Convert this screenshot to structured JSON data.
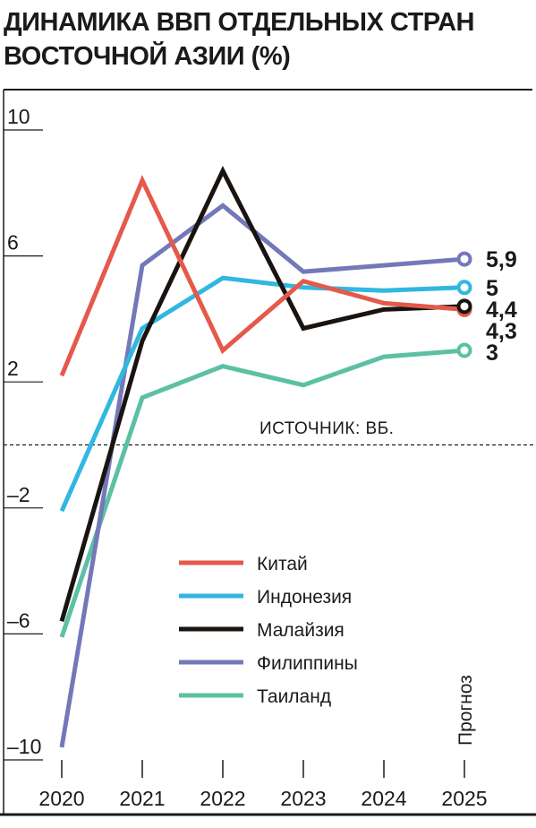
{
  "chart_data": {
    "type": "line",
    "title": "ДИНАМИКА ВВП ОТДЕЛЬНЫХ СТРАН ВОСТОЧНОЙ АЗИИ (%)",
    "x": [
      "2020",
      "2021",
      "2022",
      "2023",
      "2024",
      "2025"
    ],
    "ylim": [
      -10,
      10
    ],
    "yticks": [
      "10",
      "6",
      "2",
      "–2",
      "–6",
      "–10"
    ],
    "grid": false,
    "legend": "bottom-center",
    "source_note": "ИСТОЧНИК: ВБ.",
    "forecast_label": "Прогноз",
    "series": [
      {
        "name": "Китай",
        "color": "#e5594a",
        "values": [
          2.2,
          8.4,
          3.0,
          5.2,
          4.5,
          4.3
        ],
        "end_label": "4,3"
      },
      {
        "name": "Индонезия",
        "color": "#31b7e0",
        "values": [
          -2.1,
          3.7,
          5.3,
          5.0,
          4.9,
          5.0
        ],
        "end_label": "5"
      },
      {
        "name": "Малайзия",
        "color": "#1a1410",
        "values": [
          -5.6,
          3.3,
          8.7,
          3.7,
          4.3,
          4.4
        ],
        "end_label": "4,4"
      },
      {
        "name": "Филиппины",
        "color": "#7379b8",
        "values": [
          -9.6,
          5.7,
          7.6,
          5.5,
          5.7,
          5.9
        ],
        "end_label": "5,9"
      },
      {
        "name": "Таиланд",
        "color": "#5cc0a4",
        "values": [
          -6.1,
          1.5,
          2.5,
          1.9,
          2.8,
          3.0
        ],
        "end_label": "3"
      }
    ]
  }
}
